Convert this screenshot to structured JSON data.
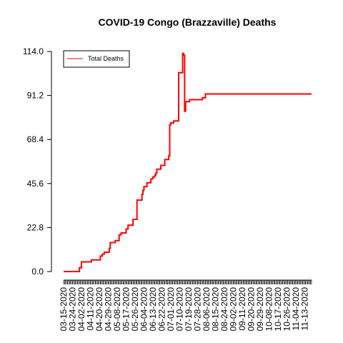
{
  "chart_data": {
    "type": "line",
    "title": "COVID-19 Congo (Brazzaville) Deaths",
    "xlabel": "",
    "ylabel": "",
    "x_start": "2020-03-15",
    "x_end": "2020-11-20",
    "ylim": [
      0,
      114
    ],
    "y_ticks": [
      0.0,
      22.8,
      45.6,
      68.4,
      91.2,
      114.0
    ],
    "y_tick_labels": [
      "0.0",
      "22.8",
      "45.6",
      "68.4",
      "91.2",
      "114.0"
    ],
    "x_tick_labels": [
      "03-15-2020",
      "03-24-2020",
      "04-02-2020",
      "04-11-2020",
      "04-20-2020",
      "04-29-2020",
      "05-08-2020",
      "05-17-2020",
      "05-26-2020",
      "06-04-2020",
      "06-13-2020",
      "06-22-2020",
      "07-01-2020",
      "07-10-2020",
      "07-19-2020",
      "07-28-2020",
      "08-06-2020",
      "08-15-2020",
      "08-24-2020",
      "09-02-2020",
      "09-11-2020",
      "09-20-2020",
      "09-29-2020",
      "10-08-2020",
      "10-17-2020",
      "10-26-2020",
      "11-04-2020",
      "11-13-2020"
    ],
    "grid": false,
    "legend_position": "top-left",
    "series": [
      {
        "name": "Total Deaths",
        "color": "#ff0000",
        "points": [
          [
            "2020-03-15",
            0
          ],
          [
            "2020-03-30",
            0
          ],
          [
            "2020-03-31",
            2
          ],
          [
            "2020-04-02",
            5
          ],
          [
            "2020-04-11",
            5
          ],
          [
            "2020-04-12",
            6
          ],
          [
            "2020-04-20",
            6
          ],
          [
            "2020-04-21",
            8
          ],
          [
            "2020-04-23",
            9
          ],
          [
            "2020-04-25",
            10
          ],
          [
            "2020-04-29",
            10
          ],
          [
            "2020-04-30",
            12
          ],
          [
            "2020-05-01",
            15
          ],
          [
            "2020-05-05",
            15
          ],
          [
            "2020-05-06",
            16
          ],
          [
            "2020-05-09",
            16
          ],
          [
            "2020-05-10",
            19
          ],
          [
            "2020-05-12",
            20
          ],
          [
            "2020-05-16",
            20
          ],
          [
            "2020-05-17",
            22
          ],
          [
            "2020-05-19",
            24
          ],
          [
            "2020-05-23",
            24
          ],
          [
            "2020-05-24",
            27
          ],
          [
            "2020-05-27",
            27
          ],
          [
            "2020-05-28",
            37
          ],
          [
            "2020-06-01",
            37
          ],
          [
            "2020-06-02",
            40
          ],
          [
            "2020-06-03",
            42
          ],
          [
            "2020-06-04",
            44
          ],
          [
            "2020-06-06",
            44
          ],
          [
            "2020-06-07",
            46
          ],
          [
            "2020-06-10",
            46
          ],
          [
            "2020-06-11",
            48
          ],
          [
            "2020-06-13",
            49
          ],
          [
            "2020-06-15",
            50
          ],
          [
            "2020-06-16",
            51
          ],
          [
            "2020-06-17",
            53
          ],
          [
            "2020-06-20",
            53
          ],
          [
            "2020-06-21",
            55
          ],
          [
            "2020-06-24",
            55
          ],
          [
            "2020-06-25",
            58
          ],
          [
            "2020-06-28",
            58
          ],
          [
            "2020-06-29",
            60
          ],
          [
            "2020-06-30",
            76
          ],
          [
            "2020-07-01",
            77
          ],
          [
            "2020-07-03",
            77
          ],
          [
            "2020-07-04",
            78
          ],
          [
            "2020-07-08",
            78
          ],
          [
            "2020-07-09",
            103
          ],
          [
            "2020-07-12",
            103
          ],
          [
            "2020-07-13",
            113
          ],
          [
            "2020-07-14",
            112
          ],
          [
            "2020-07-15",
            83
          ],
          [
            "2020-07-16",
            88
          ],
          [
            "2020-07-19",
            88
          ],
          [
            "2020-07-20",
            89
          ],
          [
            "2020-08-01",
            89
          ],
          [
            "2020-08-02",
            90
          ],
          [
            "2020-08-04",
            90
          ],
          [
            "2020-08-05",
            92
          ],
          [
            "2020-11-20",
            92
          ]
        ]
      }
    ]
  }
}
